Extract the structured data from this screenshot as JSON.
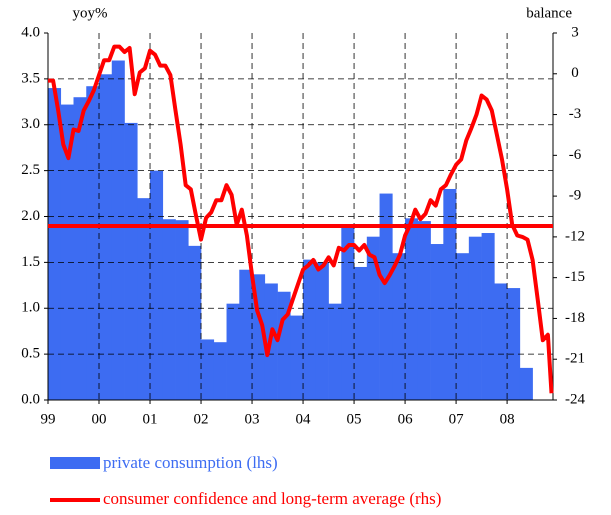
{
  "chart_data": {
    "type": "bar",
    "ylabel": "yoy%",
    "y2label": "balance",
    "xlim": [
      1999,
      2008.9
    ],
    "xticks": [
      {
        "value": 1999,
        "label": "99"
      },
      {
        "value": 2000,
        "label": "00"
      },
      {
        "value": 2001,
        "label": "01"
      },
      {
        "value": 2002,
        "label": "02"
      },
      {
        "value": 2003,
        "label": "03"
      },
      {
        "value": 2004,
        "label": "04"
      },
      {
        "value": 2005,
        "label": "05"
      },
      {
        "value": 2006,
        "label": "06"
      },
      {
        "value": 2007,
        "label": "07"
      },
      {
        "value": 2008,
        "label": "08"
      }
    ],
    "ylim": [
      0,
      4
    ],
    "yticks": [
      {
        "value": 0,
        "label": "0.0"
      },
      {
        "value": 0.5,
        "label": "0.5"
      },
      {
        "value": 1,
        "label": "1.0"
      },
      {
        "value": 1.5,
        "label": "1.5"
      },
      {
        "value": 2,
        "label": "2.0"
      },
      {
        "value": 2.5,
        "label": "2.5"
      },
      {
        "value": 3,
        "label": "3.0"
      },
      {
        "value": 3.5,
        "label": "3.5"
      },
      {
        "value": 4,
        "label": "4.0"
      }
    ],
    "y2lim": [
      -24,
      3
    ],
    "y2ticks": [
      -24,
      -21,
      -18,
      -15,
      -12,
      -9,
      -6,
      -3,
      0,
      3
    ],
    "grid": true,
    "series": [
      {
        "name": "private consumption (lhs)",
        "type": "bar",
        "color": "#3d6cf2",
        "x": [
          1999,
          1999.25,
          1999.5,
          1999.75,
          2000,
          2000.25,
          2000.5,
          2000.75,
          2001,
          2001.25,
          2001.5,
          2001.75,
          2002,
          2002.25,
          2002.5,
          2002.75,
          2003,
          2003.25,
          2003.5,
          2003.75,
          2004,
          2004.25,
          2004.5,
          2004.75,
          2005,
          2005.25,
          2005.5,
          2005.75,
          2006,
          2006.25,
          2006.5,
          2006.75,
          2007,
          2007.25,
          2007.5,
          2007.75,
          2008,
          2008.25
        ],
        "values": [
          3.4,
          3.22,
          3.3,
          3.42,
          3.55,
          3.7,
          3.02,
          2.2,
          2.5,
          1.97,
          1.96,
          1.68,
          0.66,
          0.63,
          1.05,
          1.42,
          1.37,
          1.27,
          1.18,
          0.92,
          1.53,
          1.5,
          1.05,
          1.9,
          1.45,
          1.78,
          2.25,
          1.6,
          1.98,
          1.95,
          1.7,
          2.3,
          1.6,
          1.78,
          1.82,
          1.27,
          1.22,
          0.35
        ]
      },
      {
        "name": "consumer confidence and long-term average (rhs)",
        "type": "line",
        "axis": "y2",
        "color": "#ff0000",
        "average": -11.2,
        "x": [
          1999,
          1999.1,
          1999.2,
          1999.3,
          1999.4,
          1999.5,
          1999.6,
          1999.7,
          1999.8,
          1999.9,
          2000,
          2000.1,
          2000.2,
          2000.3,
          2000.4,
          2000.5,
          2000.6,
          2000.7,
          2000.8,
          2000.9,
          2001,
          2001.1,
          2001.2,
          2001.3,
          2001.4,
          2001.5,
          2001.6,
          2001.7,
          2001.8,
          2001.9,
          2002,
          2002.1,
          2002.2,
          2002.3,
          2002.4,
          2002.5,
          2002.6,
          2002.7,
          2002.8,
          2002.9,
          2003,
          2003.1,
          2003.2,
          2003.3,
          2003.4,
          2003.5,
          2003.6,
          2003.7,
          2003.8,
          2003.9,
          2004,
          2004.1,
          2004.2,
          2004.3,
          2004.4,
          2004.5,
          2004.6,
          2004.7,
          2004.8,
          2004.9,
          2005,
          2005.1,
          2005.2,
          2005.3,
          2005.4,
          2005.5,
          2005.6,
          2005.7,
          2005.8,
          2005.9,
          2006,
          2006.1,
          2006.2,
          2006.3,
          2006.4,
          2006.5,
          2006.6,
          2006.7,
          2006.8,
          2006.9,
          2007,
          2007.1,
          2007.2,
          2007.3,
          2007.4,
          2007.5,
          2007.6,
          2007.7,
          2007.8,
          2007.9,
          2008,
          2008.1,
          2008.2,
          2008.3,
          2008.4,
          2008.5,
          2008.6,
          2008.7,
          2008.8,
          2008.87
        ],
        "values": [
          -0.5,
          -0.5,
          -2.7,
          -5.2,
          -6.2,
          -4.1,
          -4.2,
          -2.7,
          -2.0,
          -1.2,
          -0.1,
          1.0,
          1.0,
          2.0,
          2.0,
          1.6,
          1.9,
          -1.5,
          0.1,
          0.4,
          1.7,
          1.4,
          0.6,
          0.6,
          -0.1,
          -2.7,
          -5.2,
          -8.2,
          -8.5,
          -10.4,
          -12.2,
          -10.6,
          -10.2,
          -9.3,
          -9.3,
          -8.2,
          -8.9,
          -11.1,
          -10.0,
          -11.9,
          -14.8,
          -17.4,
          -18.5,
          -20.7,
          -18.8,
          -19.6,
          -18.1,
          -17.7,
          -16.6,
          -15.5,
          -14.4,
          -14.1,
          -13.7,
          -14.4,
          -14.1,
          -13.5,
          -14.1,
          -12.8,
          -13.0,
          -12.6,
          -12.6,
          -13.0,
          -12.6,
          -13.3,
          -13.5,
          -14.8,
          -15.4,
          -14.8,
          -14.1,
          -13.3,
          -11.9,
          -11.1,
          -10.0,
          -10.7,
          -10.3,
          -9.3,
          -9.7,
          -8.5,
          -8.2,
          -7.4,
          -6.7,
          -6.3,
          -4.9,
          -4.0,
          -3.0,
          -1.6,
          -1.9,
          -2.7,
          -4.5,
          -6.3,
          -8.5,
          -11.1,
          -11.9,
          -12.0,
          -12.2,
          -13.7,
          -16.6,
          -19.6,
          -19.2,
          -23.5
        ]
      }
    ]
  }
}
